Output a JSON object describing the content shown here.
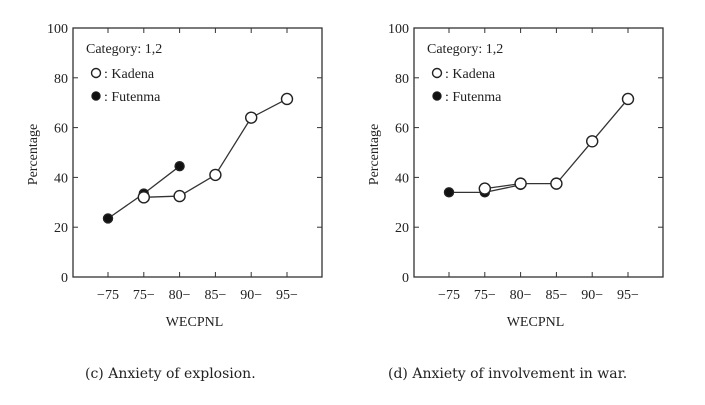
{
  "chart_data": [
    {
      "type": "line",
      "panel": "c",
      "caption": "(c) Anxiety of explosion.",
      "xlabel": "WECPNL",
      "ylabel": "Percentage",
      "ylim": [
        0,
        100
      ],
      "yticks": [
        "0",
        "20",
        "40",
        "60",
        "80",
        "100"
      ],
      "categories": [
        "−75",
        "75−",
        "80−",
        "85−",
        "90−",
        "95−"
      ],
      "legend_title": "Category: 1,2",
      "legend_position": "top-left",
      "grid": false,
      "series": [
        {
          "name": "Futenma",
          "legend_label": ": Futenma",
          "marker": "filled-circle",
          "values": [
            23.5,
            33.5,
            44.5,
            null,
            null,
            null
          ]
        },
        {
          "name": "Kadena",
          "legend_label": ": Kadena",
          "marker": "open-circle",
          "values": [
            null,
            32,
            32.5,
            41,
            64,
            71.5
          ]
        }
      ]
    },
    {
      "type": "line",
      "panel": "d",
      "caption": "(d) Anxiety of involvement in war.",
      "xlabel": "WECPNL",
      "ylabel": "Percentage",
      "ylim": [
        0,
        100
      ],
      "yticks": [
        "0",
        "20",
        "40",
        "60",
        "80",
        "100"
      ],
      "categories": [
        "−75",
        "75−",
        "80−",
        "85−",
        "90−",
        "95−"
      ],
      "legend_title": "Category: 1,2",
      "legend_position": "top-left",
      "grid": false,
      "series": [
        {
          "name": "Futenma",
          "legend_label": ": Futenma",
          "marker": "filled-circle",
          "values": [
            34,
            34,
            37,
            null,
            null,
            null
          ]
        },
        {
          "name": "Kadena",
          "legend_label": ": Kadena",
          "marker": "open-circle",
          "values": [
            null,
            35.5,
            37.5,
            37.5,
            54.5,
            71.5
          ]
        }
      ]
    }
  ]
}
